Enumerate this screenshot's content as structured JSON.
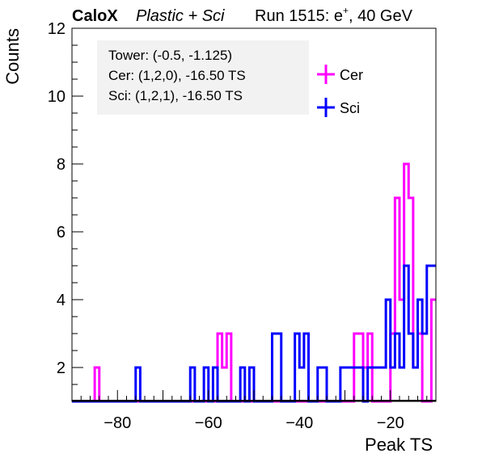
{
  "header": {
    "brand": "CaloX",
    "detector": "Plastic + Sci",
    "run_info": "Run 1515: e",
    "beam_sup": "+",
    "energy": ", 40 GeV"
  },
  "info_box": {
    "line1": "Tower: (-0.5, -1.125)",
    "line2": "Cer: (1,2,0), -16.50 TS",
    "line3": "Sci: (1,2,1), -16.50 TS"
  },
  "chart_data": {
    "type": "step-histogram",
    "xlabel": "Peak TS",
    "ylabel": "Counts",
    "xlim": [
      -90,
      -10
    ],
    "ylim": [
      1,
      12
    ],
    "bin_width": 1,
    "x_ticks": [
      -80,
      -60,
      -40,
      -20
    ],
    "x_tick_labels": [
      "−80",
      "−60",
      "−40",
      "−20"
    ],
    "y_ticks": [
      2,
      4,
      6,
      8,
      10,
      12
    ],
    "y_tick_labels": [
      "2",
      "4",
      "6",
      "8",
      "10",
      "12"
    ],
    "legend_position": "top-right",
    "series": [
      {
        "name": "Cer",
        "color": "#ff00ff",
        "bins": [
          {
            "x": -85,
            "y": 2
          },
          {
            "x": -58,
            "y": 3
          },
          {
            "x": -57,
            "y": 2
          },
          {
            "x": -56,
            "y": 3
          },
          {
            "x": -28,
            "y": 3
          },
          {
            "x": -27,
            "y": 3
          },
          {
            "x": -26,
            "y": 2
          },
          {
            "x": -25,
            "y": 3
          },
          {
            "x": -20,
            "y": 3
          },
          {
            "x": -19,
            "y": 7
          },
          {
            "x": -18,
            "y": 4
          },
          {
            "x": -17,
            "y": 8
          },
          {
            "x": -16,
            "y": 7
          },
          {
            "x": -15,
            "y": 2
          },
          {
            "x": -14,
            "y": 3
          },
          {
            "x": -11,
            "y": 4
          }
        ]
      },
      {
        "name": "Sci",
        "color": "#0000ff",
        "bins": [
          {
            "x": -76,
            "y": 2
          },
          {
            "x": -64,
            "y": 2
          },
          {
            "x": -61,
            "y": 2
          },
          {
            "x": -59,
            "y": 2
          },
          {
            "x": -53,
            "y": 2
          },
          {
            "x": -51,
            "y": 2
          },
          {
            "x": -46,
            "y": 3
          },
          {
            "x": -45,
            "y": 3
          },
          {
            "x": -41,
            "y": 3
          },
          {
            "x": -40,
            "y": 2
          },
          {
            "x": -39,
            "y": 3
          },
          {
            "x": -36,
            "y": 2
          },
          {
            "x": -35,
            "y": 2
          },
          {
            "x": -31,
            "y": 2
          },
          {
            "x": -30,
            "y": 2
          },
          {
            "x": -29,
            "y": 2
          },
          {
            "x": -28,
            "y": 2
          },
          {
            "x": -27,
            "y": 2
          },
          {
            "x": -25,
            "y": 2
          },
          {
            "x": -24,
            "y": 2
          },
          {
            "x": -23,
            "y": 2
          },
          {
            "x": -22,
            "y": 2
          },
          {
            "x": -21,
            "y": 4
          },
          {
            "x": -20,
            "y": 2
          },
          {
            "x": -19,
            "y": 3
          },
          {
            "x": -18,
            "y": 2
          },
          {
            "x": -17,
            "y": 5
          },
          {
            "x": -16,
            "y": 3
          },
          {
            "x": -15,
            "y": 2
          },
          {
            "x": -14,
            "y": 4
          },
          {
            "x": -13,
            "y": 3
          },
          {
            "x": -12,
            "y": 5
          },
          {
            "x": -11,
            "y": 5
          }
        ]
      }
    ]
  }
}
